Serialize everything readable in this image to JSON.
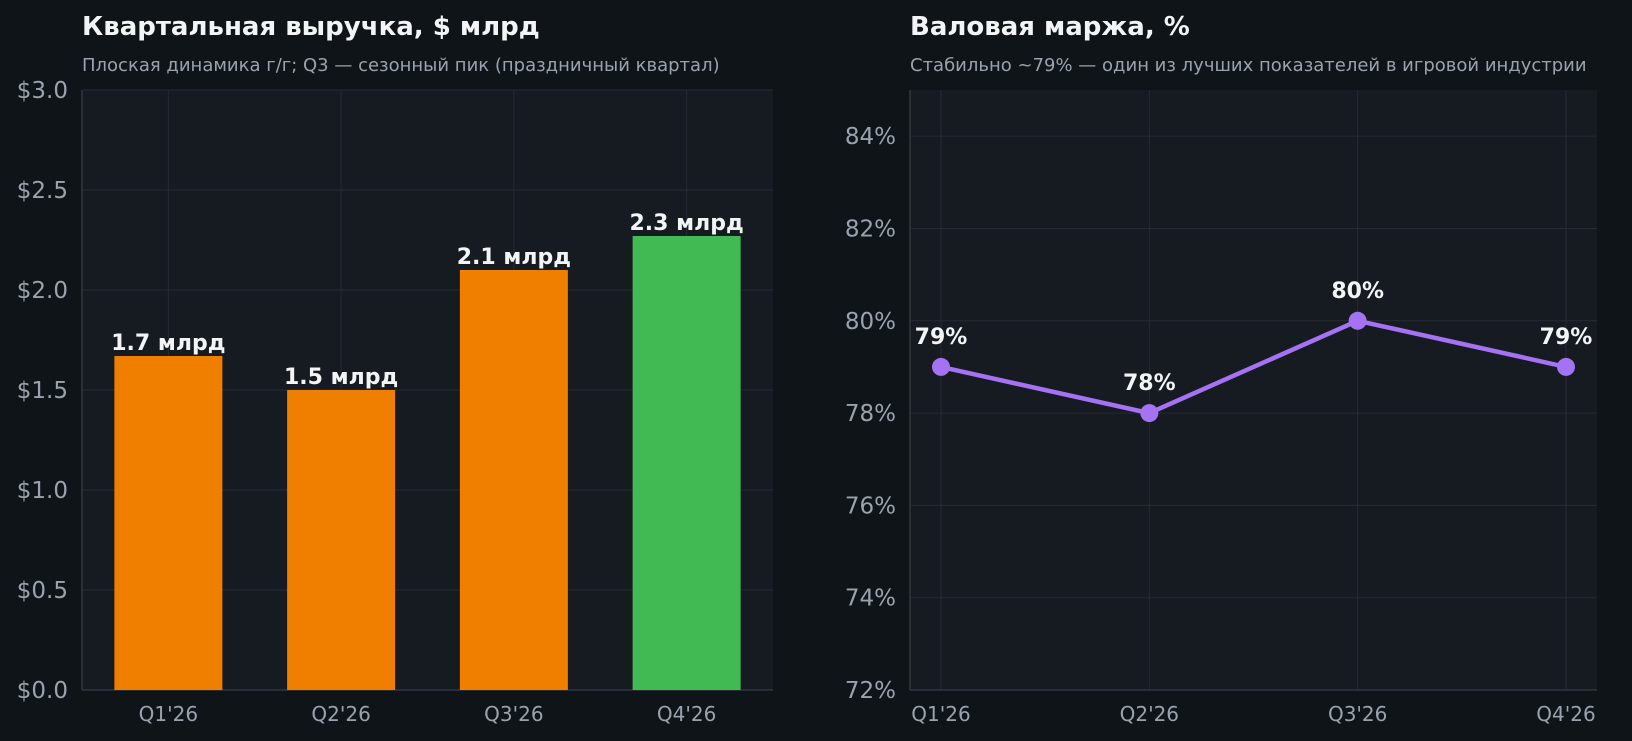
{
  "chart_data": [
    {
      "type": "bar",
      "title": "Квартальная выручка, $ млрд",
      "subtitle": "Плоская динамика г/г; Q3 — сезонный пик (праздничный квартал)",
      "categories": [
        "Q1'26",
        "Q2'26",
        "Q3'26",
        "Q4'26"
      ],
      "values": [
        1.67,
        1.5,
        2.1,
        2.27
      ],
      "data_labels": [
        "1.7 млрд",
        "1.5 млрд",
        "2.1 млрд",
        "2.3 млрд"
      ],
      "bar_colors": [
        "#f07f00",
        "#f07f00",
        "#f07f00",
        "#42ba53"
      ],
      "ylim": [
        0,
        3
      ],
      "yticks": [
        0,
        0.5,
        1,
        1.5,
        2,
        2.5,
        3
      ],
      "ytick_labels": [
        "$0.0",
        "$0.5",
        "$1.0",
        "$1.5",
        "$2.0",
        "$2.5",
        "$3.0"
      ],
      "grid": true
    },
    {
      "type": "line",
      "title": "Валовая маржа, %",
      "subtitle": "Стабильно ~79% — один из лучших показателей в игровой индустрии",
      "categories": [
        "Q1'26",
        "Q2'26",
        "Q3'26",
        "Q4'26"
      ],
      "values": [
        79,
        78,
        80,
        79
      ],
      "data_labels": [
        "79%",
        "78%",
        "80%",
        "79%"
      ],
      "line_color": "#a472f2",
      "ylim": [
        72,
        85
      ],
      "yticks": [
        72,
        74,
        76,
        78,
        80,
        82,
        84
      ],
      "ytick_labels": [
        "72%",
        "74%",
        "76%",
        "78%",
        "80%",
        "82%",
        "84%"
      ],
      "grid": true
    }
  ],
  "colors": {
    "page_background": "#0f1418",
    "plot_background": "#161a21",
    "grid": "#252b34",
    "text": "#f2f4f6",
    "muted_text": "#9aa3ad"
  }
}
